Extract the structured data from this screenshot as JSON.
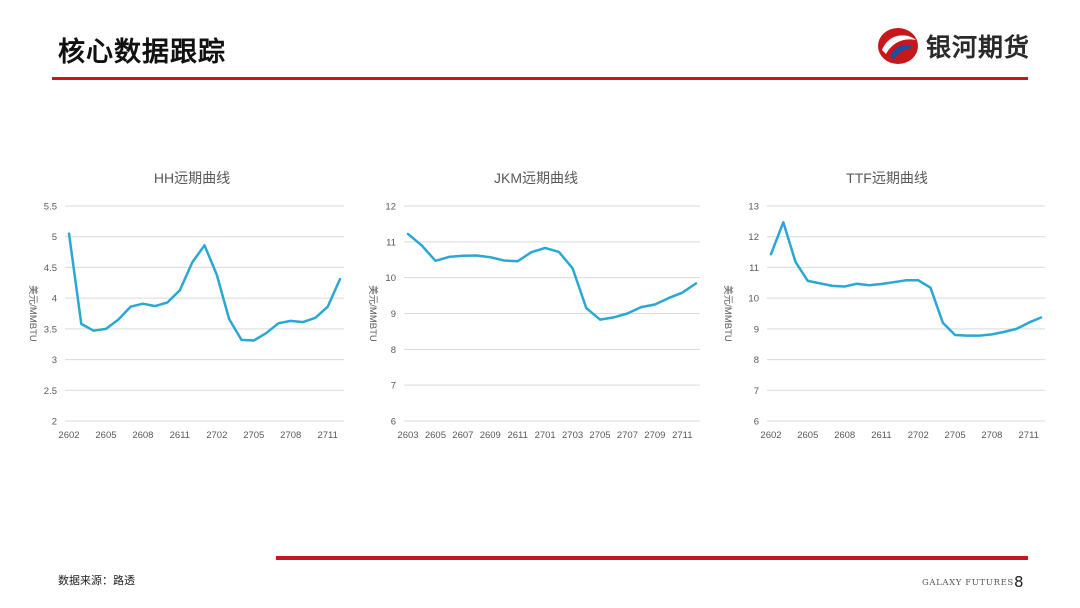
{
  "header": {
    "title": "核心数据跟踪",
    "logo_text": "银河期货"
  },
  "footer": {
    "source": "数据来源：路透",
    "brand_en": "GALAXY FUTURES",
    "page_number": "8"
  },
  "colors": {
    "accent_red": "#c8161d",
    "line": "#2aa7d3",
    "grid": "#d9d9d9",
    "axis_text": "#595959"
  },
  "chart_data": [
    {
      "type": "line",
      "title": "HH远期曲线",
      "ylabel": "美元/MMBTU",
      "xlabel": "",
      "ylim": [
        2,
        5.5
      ],
      "yticks": [
        "2",
        "2.5",
        "3",
        "3.5",
        "4",
        "4.5",
        "5",
        "5.5"
      ],
      "ytick_values": [
        2,
        2.5,
        3,
        3.5,
        4,
        4.5,
        5,
        5.5
      ],
      "x_start": "2602",
      "xtick_labels": [
        "2602",
        "2605",
        "2608",
        "2611",
        "2702",
        "2705",
        "2708",
        "2711"
      ],
      "xtick_index": [
        0,
        3,
        6,
        9,
        12,
        15,
        18,
        21
      ],
      "grid": true,
      "legend": "none",
      "series": [
        {
          "values": [
            5.05,
            3.58,
            3.47,
            3.5,
            3.65,
            3.86,
            3.91,
            3.87,
            3.93,
            4.13,
            4.58,
            4.86,
            4.38,
            3.66,
            3.32,
            3.31,
            3.43,
            3.59,
            3.63,
            3.61,
            3.68,
            3.86,
            4.31
          ]
        }
      ]
    },
    {
      "type": "line",
      "title": "JKM远期曲线",
      "ylabel": "美元/MMBTU",
      "xlabel": "",
      "ylim": [
        6,
        12
      ],
      "yticks": [
        "6",
        "7",
        "8",
        "9",
        "10",
        "11",
        "12"
      ],
      "ytick_values": [
        6,
        7,
        8,
        9,
        10,
        11,
        12
      ],
      "x_start": "2603",
      "xtick_labels": [
        "2603",
        "2605",
        "2607",
        "2609",
        "2611",
        "2701",
        "2703",
        "2705",
        "2707",
        "2709",
        "2711"
      ],
      "xtick_index": [
        0,
        2,
        4,
        6,
        8,
        10,
        12,
        14,
        16,
        18,
        20
      ],
      "grid": true,
      "legend": "none",
      "series": [
        {
          "values": [
            11.22,
            10.9,
            10.47,
            10.58,
            10.61,
            10.62,
            10.57,
            10.48,
            10.46,
            10.71,
            10.83,
            10.72,
            10.26,
            9.15,
            8.83,
            8.89,
            9.0,
            9.18,
            9.25,
            9.43,
            9.58,
            9.84
          ]
        }
      ]
    },
    {
      "type": "line",
      "title": "TTF远期曲线",
      "ylabel": "美元/MMBTU",
      "xlabel": "",
      "ylim": [
        6,
        13
      ],
      "yticks": [
        "6",
        "7",
        "8",
        "9",
        "10",
        "11",
        "12",
        "13"
      ],
      "ytick_values": [
        6,
        7,
        8,
        9,
        10,
        11,
        12,
        13
      ],
      "x_start": "2602",
      "xtick_labels": [
        "2602",
        "2605",
        "2608",
        "2611",
        "2702",
        "2705",
        "2708",
        "2711"
      ],
      "xtick_index": [
        0,
        3,
        6,
        9,
        12,
        15,
        18,
        21
      ],
      "grid": true,
      "legend": "none",
      "series": [
        {
          "values": [
            11.43,
            12.47,
            11.18,
            10.56,
            10.48,
            10.4,
            10.38,
            10.47,
            10.42,
            10.46,
            10.52,
            10.58,
            10.58,
            10.34,
            9.2,
            8.8,
            8.78,
            8.78,
            8.82,
            8.9,
            9.0,
            9.2,
            9.37
          ]
        }
      ]
    }
  ]
}
